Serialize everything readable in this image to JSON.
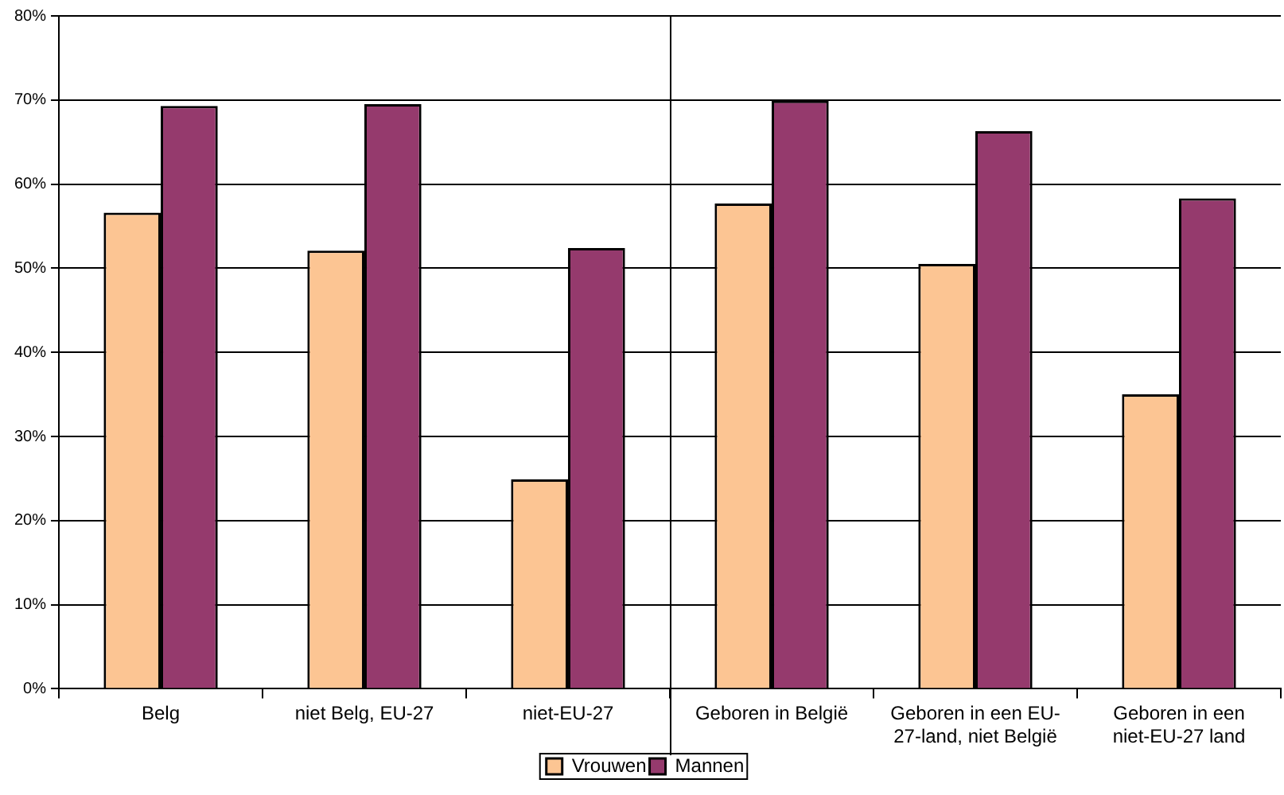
{
  "chart_data": {
    "type": "bar",
    "categories": [
      "Belg",
      "niet Belg, EU-27",
      "niet-EU-27",
      "Geboren in België",
      "Geboren in een EU-27-land, niet België",
      "Geboren in een niet-EU-27 land"
    ],
    "series": [
      {
        "name": "Vrouwen",
        "color": "#fcc593",
        "values": [
          56.6,
          52.1,
          24.9,
          57.7,
          50.5,
          35.0
        ]
      },
      {
        "name": "Mannen",
        "color": "#953a6d",
        "values": [
          69.3,
          69.5,
          52.4,
          69.9,
          66.3,
          58.3
        ]
      }
    ],
    "ylim": [
      0,
      80
    ],
    "yticks": [
      {
        "value": 0,
        "label": "0%"
      },
      {
        "value": 10,
        "label": "10%"
      },
      {
        "value": 20,
        "label": "20%"
      },
      {
        "value": 30,
        "label": "30%"
      },
      {
        "value": 40,
        "label": "40%"
      },
      {
        "value": 50,
        "label": "50%"
      },
      {
        "value": 60,
        "label": "60%"
      },
      {
        "value": 70,
        "label": "70%"
      },
      {
        "value": 80,
        "label": "80%"
      }
    ],
    "grid": "y",
    "legend": "bottom"
  }
}
